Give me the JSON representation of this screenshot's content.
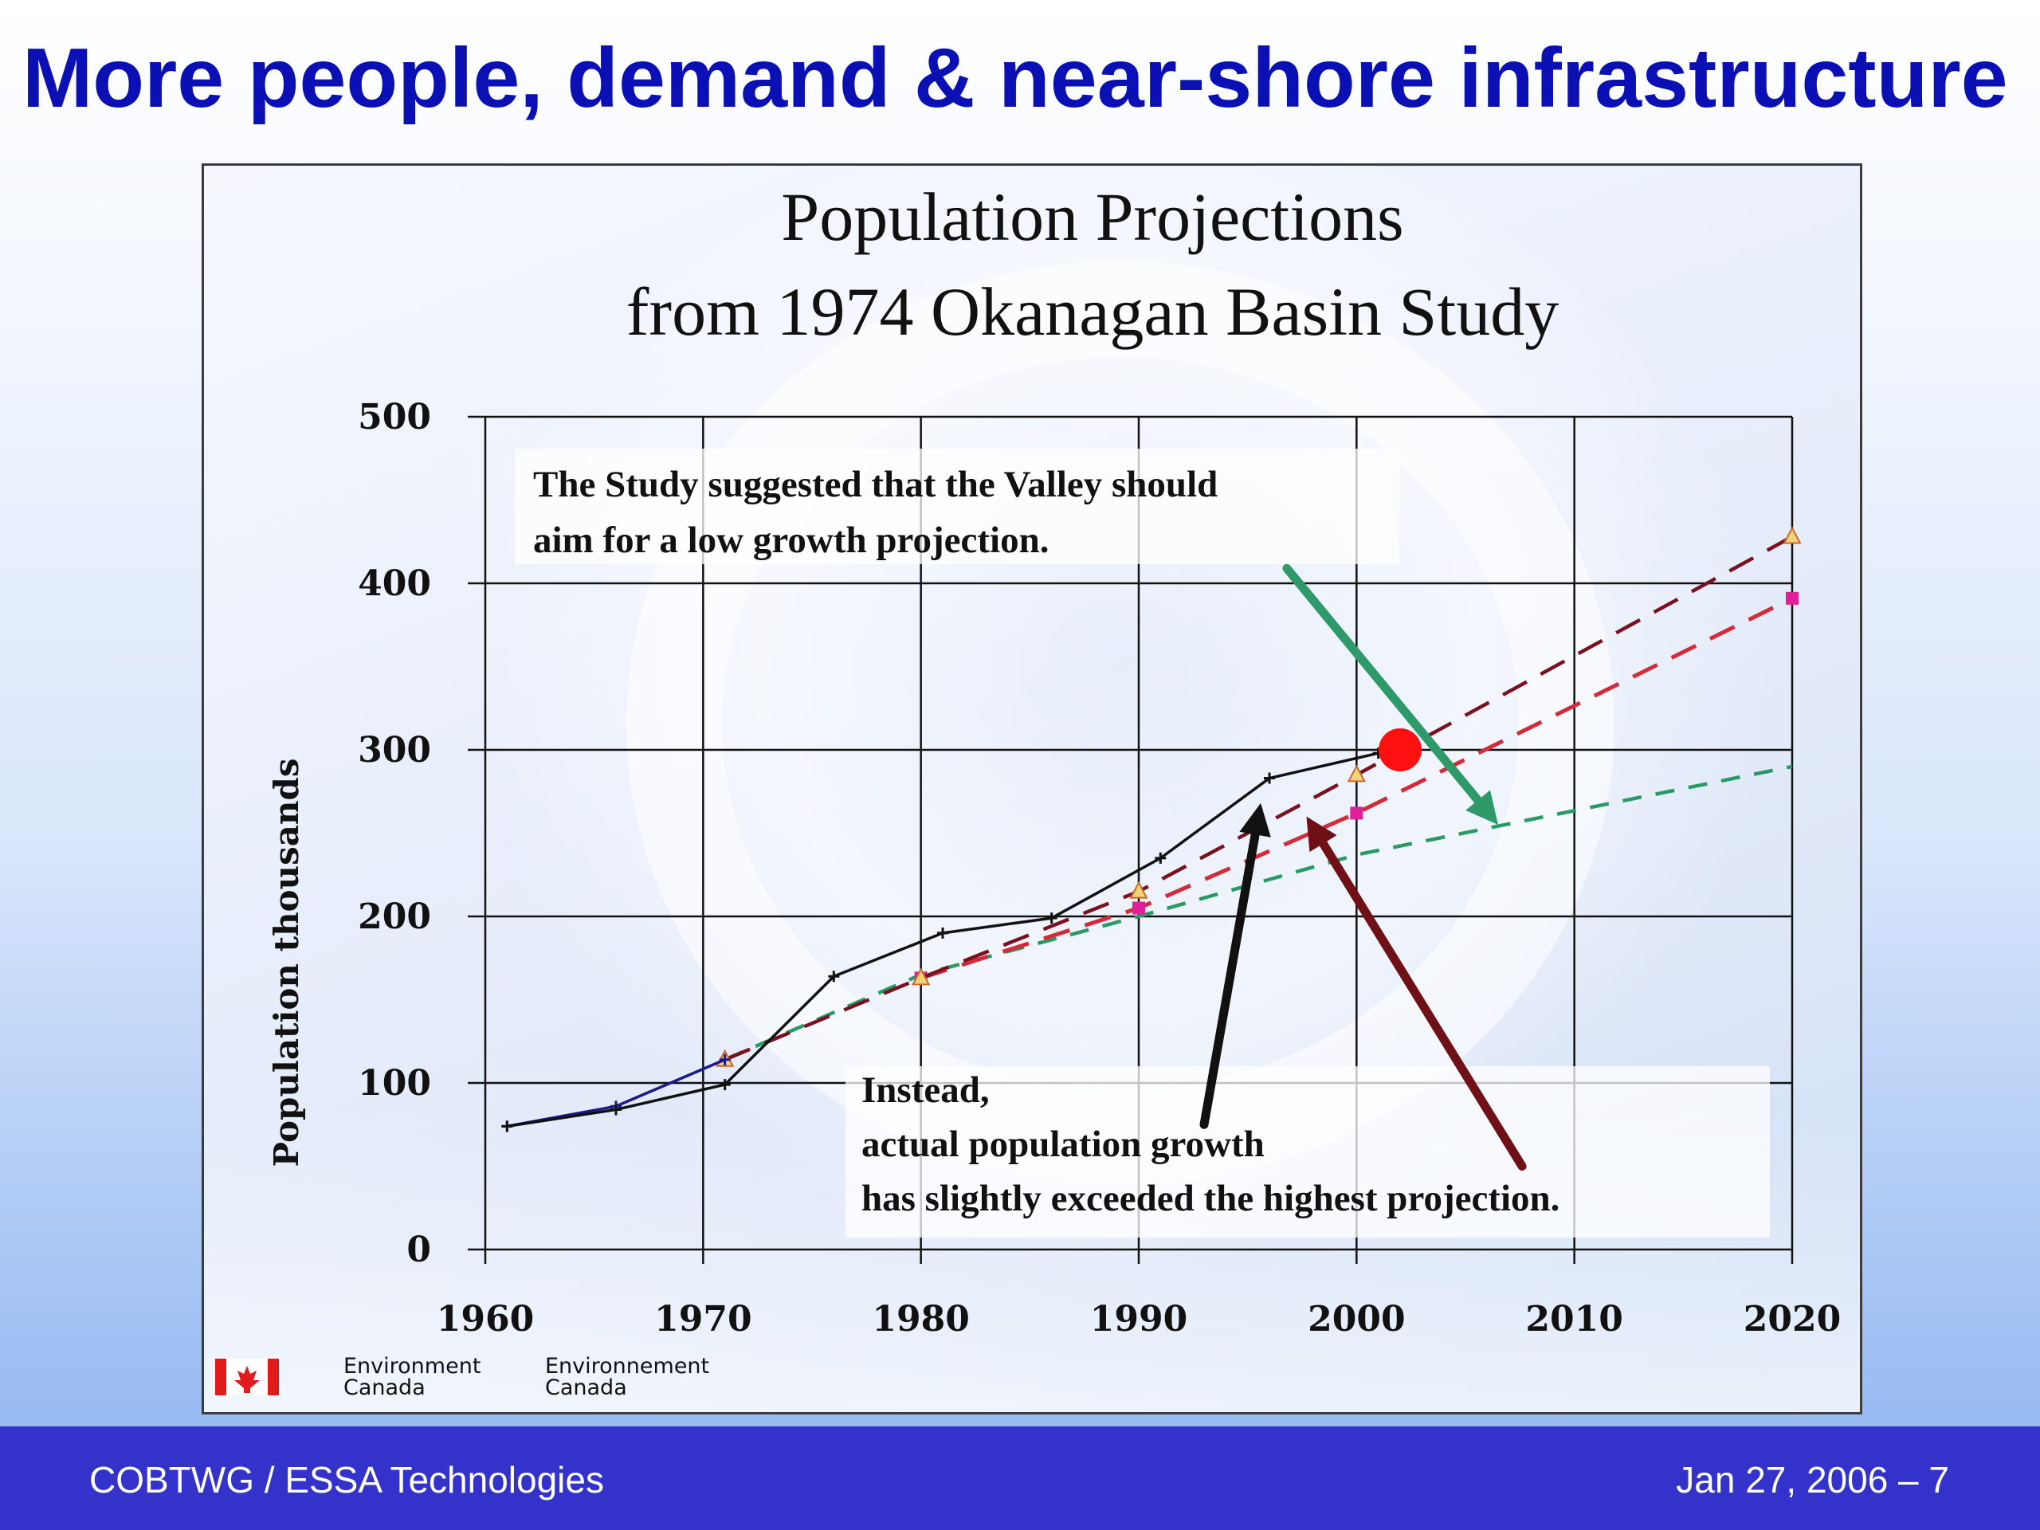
{
  "slide": {
    "title": "More people, demand & near-shore infrastructure",
    "footer_left": "COBTWG / ESSA Technologies",
    "footer_right": "Jan 27, 2006 – 7"
  },
  "chart_data": {
    "type": "line",
    "title": [
      "Population Projections",
      "from 1974 Okanagan Basin Study"
    ],
    "xlabel": "",
    "ylabel": "Population thousands",
    "xlim": [
      1960,
      2020
    ],
    "ylim": [
      0,
      500
    ],
    "x_ticks": [
      1960,
      1970,
      1980,
      1990,
      2000,
      2010,
      2020
    ],
    "y_ticks": [
      0,
      100,
      200,
      300,
      400,
      500
    ],
    "grid": true,
    "legend": "none",
    "series": [
      {
        "style": "actual",
        "color": "#111111",
        "x": [
          1961,
          1966,
          1971,
          1976,
          1981,
          1986,
          1991,
          1996,
          2001
        ],
        "y": [
          74,
          84,
          99,
          164,
          190,
          199,
          235,
          283,
          298
        ]
      },
      {
        "style": "historic",
        "color": "#1a1a8a",
        "x": [
          1961,
          1966,
          1971
        ],
        "y": [
          74,
          86,
          114
        ]
      },
      {
        "style": "high",
        "color": "#7a1020",
        "marker": "triangle",
        "x": [
          1971,
          1980,
          1990,
          2000,
          2020
        ],
        "y": [
          114,
          163,
          215,
          285,
          428
        ]
      },
      {
        "style": "medium",
        "color": "#d42a3a",
        "marker": "square",
        "x": [
          1980,
          1990,
          2000,
          2020
        ],
        "y": [
          163,
          205,
          262,
          391
        ]
      },
      {
        "style": "low",
        "color": "#2a9a64",
        "x": [
          1971,
          1980,
          1990,
          2000,
          2020
        ],
        "y": [
          114,
          165,
          200,
          237,
          290
        ]
      }
    ],
    "highlight_point": {
      "x": 2002,
      "y": 300,
      "color": "#ff1010"
    },
    "annotations": {
      "low_growth": [
        "The Study suggested that the Valley should",
        "aim for a low growth projection."
      ],
      "instead": [
        "Instead,",
        "actual population growth",
        "has slightly exceeded the highest projection."
      ]
    },
    "arrows": [
      {
        "color": "#2e9a6a",
        "from": [
          1996.8,
          409
        ],
        "to": [
          2006.5,
          255
        ]
      },
      {
        "color": "#111111",
        "from": [
          1993,
          75
        ],
        "to": [
          1995.6,
          268
        ]
      },
      {
        "color": "#6e1016",
        "from": [
          2007.6,
          50
        ],
        "to": [
          1997.7,
          260
        ]
      }
    ],
    "logo": {
      "flag": "canada-flag",
      "text_en": [
        "Environment",
        "Canada"
      ],
      "text_fr": [
        "Environnement",
        "Canada"
      ]
    }
  }
}
